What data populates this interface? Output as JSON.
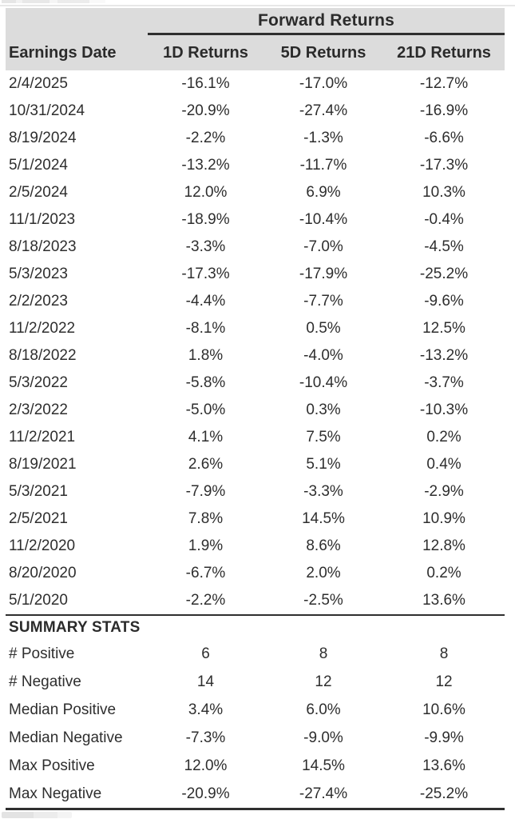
{
  "table": {
    "group_header": "Forward Returns",
    "columns": [
      "Earnings Date",
      "1D Returns",
      "5D Returns",
      "21D Returns"
    ],
    "rows": [
      {
        "date": "2/4/2025",
        "d1": "-16.1%",
        "d5": "-17.0%",
        "d21": "-12.7%"
      },
      {
        "date": "10/31/2024",
        "d1": "-20.9%",
        "d5": "-27.4%",
        "d21": "-16.9%"
      },
      {
        "date": "8/19/2024",
        "d1": "-2.2%",
        "d5": "-1.3%",
        "d21": "-6.6%"
      },
      {
        "date": "5/1/2024",
        "d1": "-13.2%",
        "d5": "-11.7%",
        "d21": "-17.3%"
      },
      {
        "date": "2/5/2024",
        "d1": "12.0%",
        "d5": "6.9%",
        "d21": "10.3%"
      },
      {
        "date": "11/1/2023",
        "d1": "-18.9%",
        "d5": "-10.4%",
        "d21": "-0.4%"
      },
      {
        "date": "8/18/2023",
        "d1": "-3.3%",
        "d5": "-7.0%",
        "d21": "-4.5%"
      },
      {
        "date": "5/3/2023",
        "d1": "-17.3%",
        "d5": "-17.9%",
        "d21": "-25.2%"
      },
      {
        "date": "2/2/2023",
        "d1": "-4.4%",
        "d5": "-7.7%",
        "d21": "-9.6%"
      },
      {
        "date": "11/2/2022",
        "d1": "-8.1%",
        "d5": "0.5%",
        "d21": "12.5%"
      },
      {
        "date": "8/18/2022",
        "d1": "1.8%",
        "d5": "-4.0%",
        "d21": "-13.2%"
      },
      {
        "date": "5/3/2022",
        "d1": "-5.8%",
        "d5": "-10.4%",
        "d21": "-3.7%"
      },
      {
        "date": "2/3/2022",
        "d1": "-5.0%",
        "d5": "0.3%",
        "d21": "-10.3%"
      },
      {
        "date": "11/2/2021",
        "d1": "4.1%",
        "d5": "7.5%",
        "d21": "0.2%"
      },
      {
        "date": "8/19/2021",
        "d1": "2.6%",
        "d5": "5.1%",
        "d21": "0.4%"
      },
      {
        "date": "5/3/2021",
        "d1": "-7.9%",
        "d5": "-3.3%",
        "d21": "-2.9%"
      },
      {
        "date": "2/5/2021",
        "d1": "7.8%",
        "d5": "14.5%",
        "d21": "10.9%"
      },
      {
        "date": "11/2/2020",
        "d1": "1.9%",
        "d5": "8.6%",
        "d21": "12.8%"
      },
      {
        "date": "8/20/2020",
        "d1": "-6.7%",
        "d5": "2.0%",
        "d21": "0.2%"
      },
      {
        "date": "5/1/2020",
        "d1": "-2.2%",
        "d5": "-2.5%",
        "d21": "13.6%"
      }
    ],
    "summary": {
      "title": "SUMMARY STATS",
      "rows": [
        {
          "label": "# Positive",
          "d1": "6",
          "d5": "8",
          "d21": "8"
        },
        {
          "label": "# Negative",
          "d1": "14",
          "d5": "12",
          "d21": "12"
        },
        {
          "label": "Median Positive",
          "d1": "3.4%",
          "d5": "6.0%",
          "d21": "10.6%"
        },
        {
          "label": "Median Negative",
          "d1": "-7.3%",
          "d5": "-9.0%",
          "d21": "-9.9%"
        },
        {
          "label": "Max Positive",
          "d1": "12.0%",
          "d5": "14.5%",
          "d21": "13.6%"
        },
        {
          "label": "Max Negative",
          "d1": "-20.9%",
          "d5": "-27.4%",
          "d21": "-25.2%"
        }
      ]
    },
    "colors": {
      "header_bg": "#dcdcdc",
      "text": "#2e2e2e",
      "rule": "#2f2f2f",
      "body_bg": "#ffffff"
    }
  },
  "chart_data": {
    "type": "table",
    "title": "Forward Returns",
    "columns": [
      "Earnings Date",
      "1D Returns",
      "5D Returns",
      "21D Returns"
    ],
    "rows": [
      [
        "2/4/2025",
        -16.1,
        -17.0,
        -12.7
      ],
      [
        "10/31/2024",
        -20.9,
        -27.4,
        -16.9
      ],
      [
        "8/19/2024",
        -2.2,
        -1.3,
        -6.6
      ],
      [
        "5/1/2024",
        -13.2,
        -11.7,
        -17.3
      ],
      [
        "2/5/2024",
        12.0,
        6.9,
        10.3
      ],
      [
        "11/1/2023",
        -18.9,
        -10.4,
        -0.4
      ],
      [
        "8/18/2023",
        -3.3,
        -7.0,
        -4.5
      ],
      [
        "5/3/2023",
        -17.3,
        -17.9,
        -25.2
      ],
      [
        "2/2/2023",
        -4.4,
        -7.7,
        -9.6
      ],
      [
        "11/2/2022",
        -8.1,
        0.5,
        12.5
      ],
      [
        "8/18/2022",
        1.8,
        -4.0,
        -13.2
      ],
      [
        "5/3/2022",
        -5.8,
        -10.4,
        -3.7
      ],
      [
        "2/3/2022",
        -5.0,
        0.3,
        -10.3
      ],
      [
        "11/2/2021",
        4.1,
        7.5,
        0.2
      ],
      [
        "8/19/2021",
        2.6,
        5.1,
        0.4
      ],
      [
        "5/3/2021",
        -7.9,
        -3.3,
        -2.9
      ],
      [
        "2/5/2021",
        7.8,
        14.5,
        10.9
      ],
      [
        "11/2/2020",
        1.9,
        8.6,
        12.8
      ],
      [
        "8/20/2020",
        -6.7,
        2.0,
        0.2
      ],
      [
        "5/1/2020",
        -2.2,
        -2.5,
        13.6
      ]
    ],
    "summary_rows": [
      [
        "# Positive",
        6,
        8,
        8
      ],
      [
        "# Negative",
        14,
        12,
        12
      ],
      [
        "Median Positive",
        3.4,
        6.0,
        10.6
      ],
      [
        "Median Negative",
        -7.3,
        -9.0,
        -9.9
      ],
      [
        "Max Positive",
        12.0,
        14.5,
        13.6
      ],
      [
        "Max Negative",
        -20.9,
        -27.4,
        -25.2
      ]
    ],
    "units": "percent"
  }
}
